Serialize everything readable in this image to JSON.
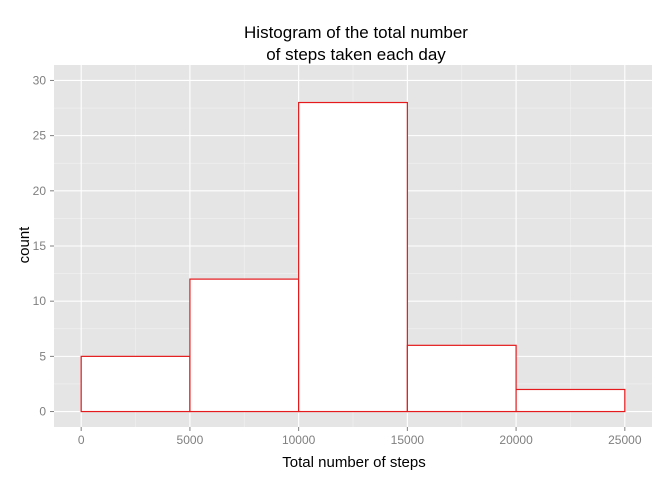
{
  "chart_data": {
    "type": "bar",
    "subtype": "histogram",
    "title": [
      "Histogram of the total number",
      "of steps taken each day"
    ],
    "xlabel": "Total number of steps",
    "ylabel": "count",
    "bins": [
      {
        "x0": 0,
        "x1": 5000,
        "count": 5
      },
      {
        "x0": 5000,
        "x1": 10000,
        "count": 12
      },
      {
        "x0": 10000,
        "x1": 15000,
        "count": 28
      },
      {
        "x0": 15000,
        "x1": 20000,
        "count": 6
      },
      {
        "x0": 20000,
        "x1": 25000,
        "count": 2
      }
    ],
    "xlim": [
      -1250,
      26250
    ],
    "ylim": [
      -1.4,
      31.4
    ],
    "xticks": [
      0,
      5000,
      10000,
      15000,
      20000,
      25000
    ],
    "yticks": [
      0,
      5,
      10,
      15,
      20,
      25,
      30
    ],
    "grid": true,
    "colors": {
      "panel_background": "#e5e5e5",
      "grid_major": "#ffffff",
      "grid_minor": "#f2f2f2",
      "bar_fill": "#ffffff",
      "bar_outline": "#e41a1c",
      "tick_label": "#7f7f7f"
    }
  }
}
